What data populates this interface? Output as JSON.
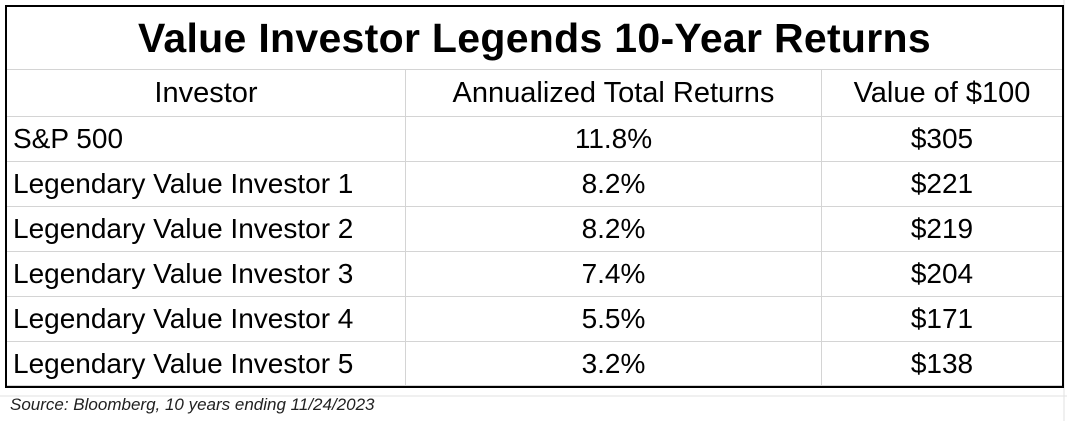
{
  "title": "Value Investor Legends 10-Year Returns",
  "table": {
    "header": [
      "Investor",
      "Annualized Total Returns",
      "Value of $100"
    ],
    "rows": [
      [
        "S&P 500",
        "11.8%",
        "$305"
      ],
      [
        "Legendary Value Investor 1",
        "8.2%",
        "$221"
      ],
      [
        "Legendary Value Investor 2",
        "8.2%",
        "$219"
      ],
      [
        "Legendary Value Investor 3",
        "7.4%",
        "$204"
      ],
      [
        "Legendary Value Investor 4",
        "5.5%",
        "$171"
      ],
      [
        "Legendary Value Investor 5",
        "3.2%",
        "$138"
      ]
    ]
  },
  "source": "Source: Bloomberg, 10 years ending 11/24/2023"
}
